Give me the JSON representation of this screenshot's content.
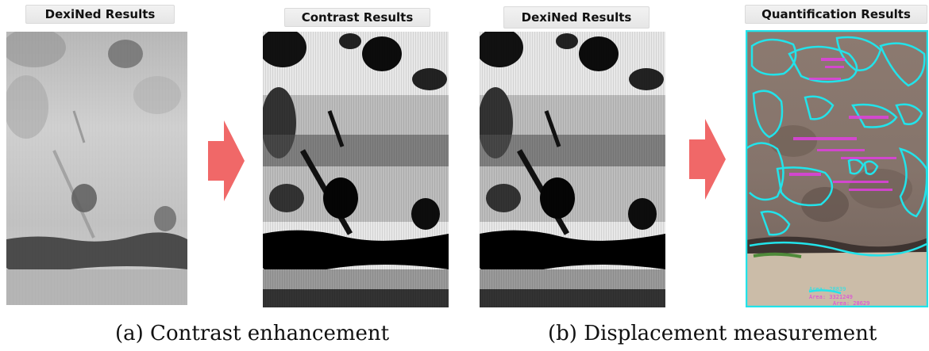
{
  "panels": {
    "a_left": {
      "label": "DexiNed Results"
    },
    "a_right": {
      "label": "Contrast Results"
    },
    "b_left": {
      "label": "DexiNed Results"
    },
    "b_right": {
      "label": "Quantification Results",
      "annotations": [
        "Area: 28839",
        "Area: 3321249",
        "Area: 28629"
      ]
    }
  },
  "captions": {
    "a": "(a) Contrast enhancement",
    "b": "(b) Displacement measurement"
  },
  "colors": {
    "arrow": "#f06868",
    "contour": "#22e3ea",
    "annotation_text": "#e040e0",
    "label_bg": "#e8e8e8"
  },
  "icons": [
    "right-arrow-icon",
    "right-arrow-icon"
  ]
}
